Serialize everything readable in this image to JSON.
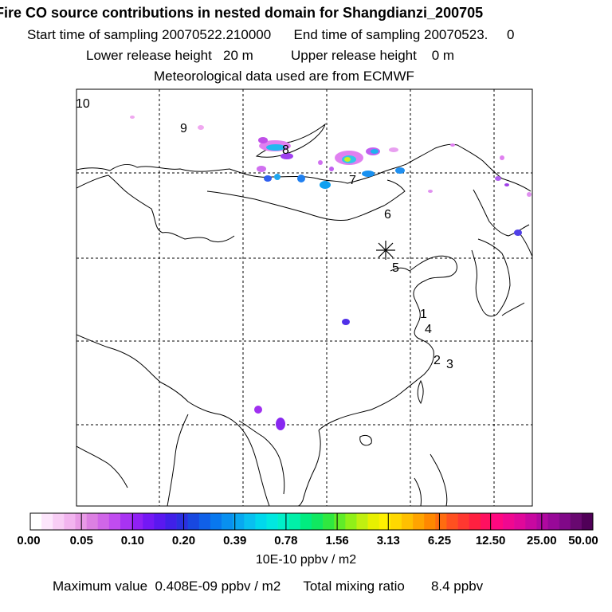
{
  "header": {
    "title": "Fire CO source contributions in nested domain for Shangdianzi_200705",
    "line2": "Start time of sampling 20070522.210000      End time of sampling 20070523.     0",
    "line3": "Lower release height   20 m          Upper release height    0 m",
    "line4": "Meteorological data used are from ECMWF"
  },
  "map": {
    "numbers": [
      "10",
      "9",
      "8",
      "7",
      "6",
      "5",
      "1",
      "4",
      "2",
      "3"
    ],
    "receptor_marker": "asterisk-marker"
  },
  "colorbar": {
    "labels": [
      "0.00",
      "0.05",
      "0.10",
      "0.20",
      "0.39",
      "0.78",
      "1.56",
      "3.13",
      "6.25",
      "12.50",
      "25.00",
      "50.00"
    ],
    "colors": [
      "#ffffff",
      "#fde6fc",
      "#f8cdf5",
      "#f2b4ef",
      "#e89ae6",
      "#dc80e2",
      "#d066e8",
      "#c04cef",
      "#a833f2",
      "#9020f5",
      "#7418f5",
      "#5a18f0",
      "#4020e8",
      "#2a30e0",
      "#1848e0",
      "#1060e8",
      "#0878ee",
      "#0890f0",
      "#08a8f0",
      "#08c0f0",
      "#00d8ec",
      "#00e8e0",
      "#00f0c8",
      "#00f0a8",
      "#00ec80",
      "#10e860",
      "#30e840",
      "#60ec28",
      "#90f018",
      "#c0f010",
      "#e8f000",
      "#fff000",
      "#ffd800",
      "#ffc000",
      "#ffa400",
      "#ff8800",
      "#ff6c10",
      "#ff5020",
      "#ff3830",
      "#ff2040",
      "#ff1060",
      "#ff0880",
      "#f00890",
      "#e0089a",
      "#c808a0",
      "#b008a0",
      "#980898",
      "#800888",
      "#680870",
      "#500058"
    ],
    "units": "10E-10 ppbv / m2"
  },
  "footer": {
    "text": "Maximum value  0.408E-09 ppbv / m2      Total mixing ratio       8.4 ppbv"
  }
}
